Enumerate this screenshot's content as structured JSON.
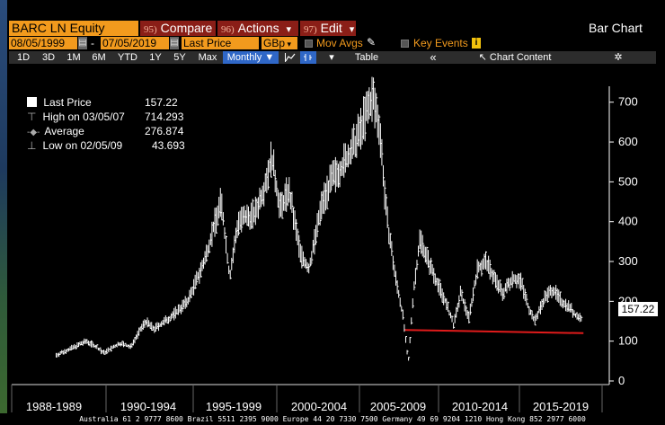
{
  "header": {
    "ticker": "BARC LN Equity",
    "menus": [
      {
        "num": "95)",
        "label": "Compare"
      },
      {
        "num": "96)",
        "label": "Actions",
        "arrow": "▾"
      },
      {
        "num": "97)",
        "label": "Edit",
        "arrow": "▾"
      }
    ],
    "chart_name": "Bar Chart"
  },
  "range": {
    "start": "08/05/1999",
    "dash": "-",
    "end": "07/05/2019",
    "field": "Last Price",
    "currency": "GBp",
    "mov_avgs": "Mov Avgs",
    "key_events": "Key Events"
  },
  "toolbar": {
    "periods": [
      "1D",
      "3D",
      "1M",
      "6M",
      "YTD",
      "1Y",
      "5Y",
      "Max"
    ],
    "frequency": "Monthly ▼",
    "dropdown": "▾",
    "table": "Table",
    "collapse": "«",
    "chart_content": "Chart Content",
    "gear": "✲"
  },
  "legend": {
    "last_label": "Last Price",
    "last_value": "157.22",
    "high_label": "High on 03/05/07",
    "high_value": "714.293",
    "avg_label": "Average",
    "avg_value": "276.874",
    "low_label": "Low on 02/05/09",
    "low_value": "43.693"
  },
  "price_tag": "157.22",
  "colors": {
    "accent": "#f29a1d",
    "menu": "#8a1e17",
    "selected": "#2f67c7",
    "trendline": "#e01b1b"
  },
  "chart_data": {
    "type": "line",
    "title": "",
    "xlabel": "",
    "ylabel": "",
    "ylim": [
      0,
      740
    ],
    "yticks": [
      0,
      100,
      200,
      300,
      400,
      500,
      600,
      700
    ],
    "xticks": [
      "1988-1989",
      "1990-1994",
      "1995-1999",
      "2000-2004",
      "2005-2009",
      "2010-2014",
      "2015-2019"
    ],
    "x": [
      1988.2,
      1989.0,
      1990.0,
      1990.6,
      1991.0,
      1992.0,
      1992.6,
      1993.5,
      1994.0,
      1995.0,
      1996.0,
      1997.0,
      1997.5,
      1998.0,
      1998.5,
      1999.0,
      2000.0,
      2000.5,
      2001.0,
      2001.5,
      2002.0,
      2002.7,
      2003.2,
      2004.0,
      2004.5,
      2005.0,
      2005.5,
      2006.0,
      2006.5,
      2007.0,
      2007.4,
      2007.8,
      2008.3,
      2008.8,
      2009.1,
      2009.4,
      2009.8,
      2010.3,
      2010.8,
      2011.3,
      2011.8,
      2012.2,
      2012.7,
      2013.2,
      2013.7,
      2014.2,
      2014.7,
      2015.3,
      2015.8,
      2016.2,
      2016.6,
      2017.2,
      2017.7,
      2018.2,
      2018.7,
      2019.0,
      2019.4
    ],
    "values": [
      65,
      80,
      100,
      85,
      70,
      95,
      85,
      150,
      130,
      160,
      200,
      300,
      380,
      450,
      260,
      400,
      420,
      480,
      560,
      430,
      480,
      320,
      280,
      450,
      500,
      530,
      560,
      600,
      660,
      714,
      640,
      420,
      270,
      160,
      44,
      220,
      360,
      300,
      250,
      200,
      140,
      220,
      160,
      280,
      300,
      260,
      220,
      260,
      250,
      190,
      150,
      210,
      230,
      200,
      185,
      165,
      157
    ],
    "series": [
      {
        "type": "trendline",
        "x": [
          2008.9,
          2019.5
        ],
        "values": [
          128,
          120
        ]
      }
    ]
  },
  "footer": "Australia 61 2 9777 8600 Brazil 5511 2395 9000 Europe 44 20 7330 7500 Germany 49 69 9204 1210 Hong Kong 852 2977 6000"
}
